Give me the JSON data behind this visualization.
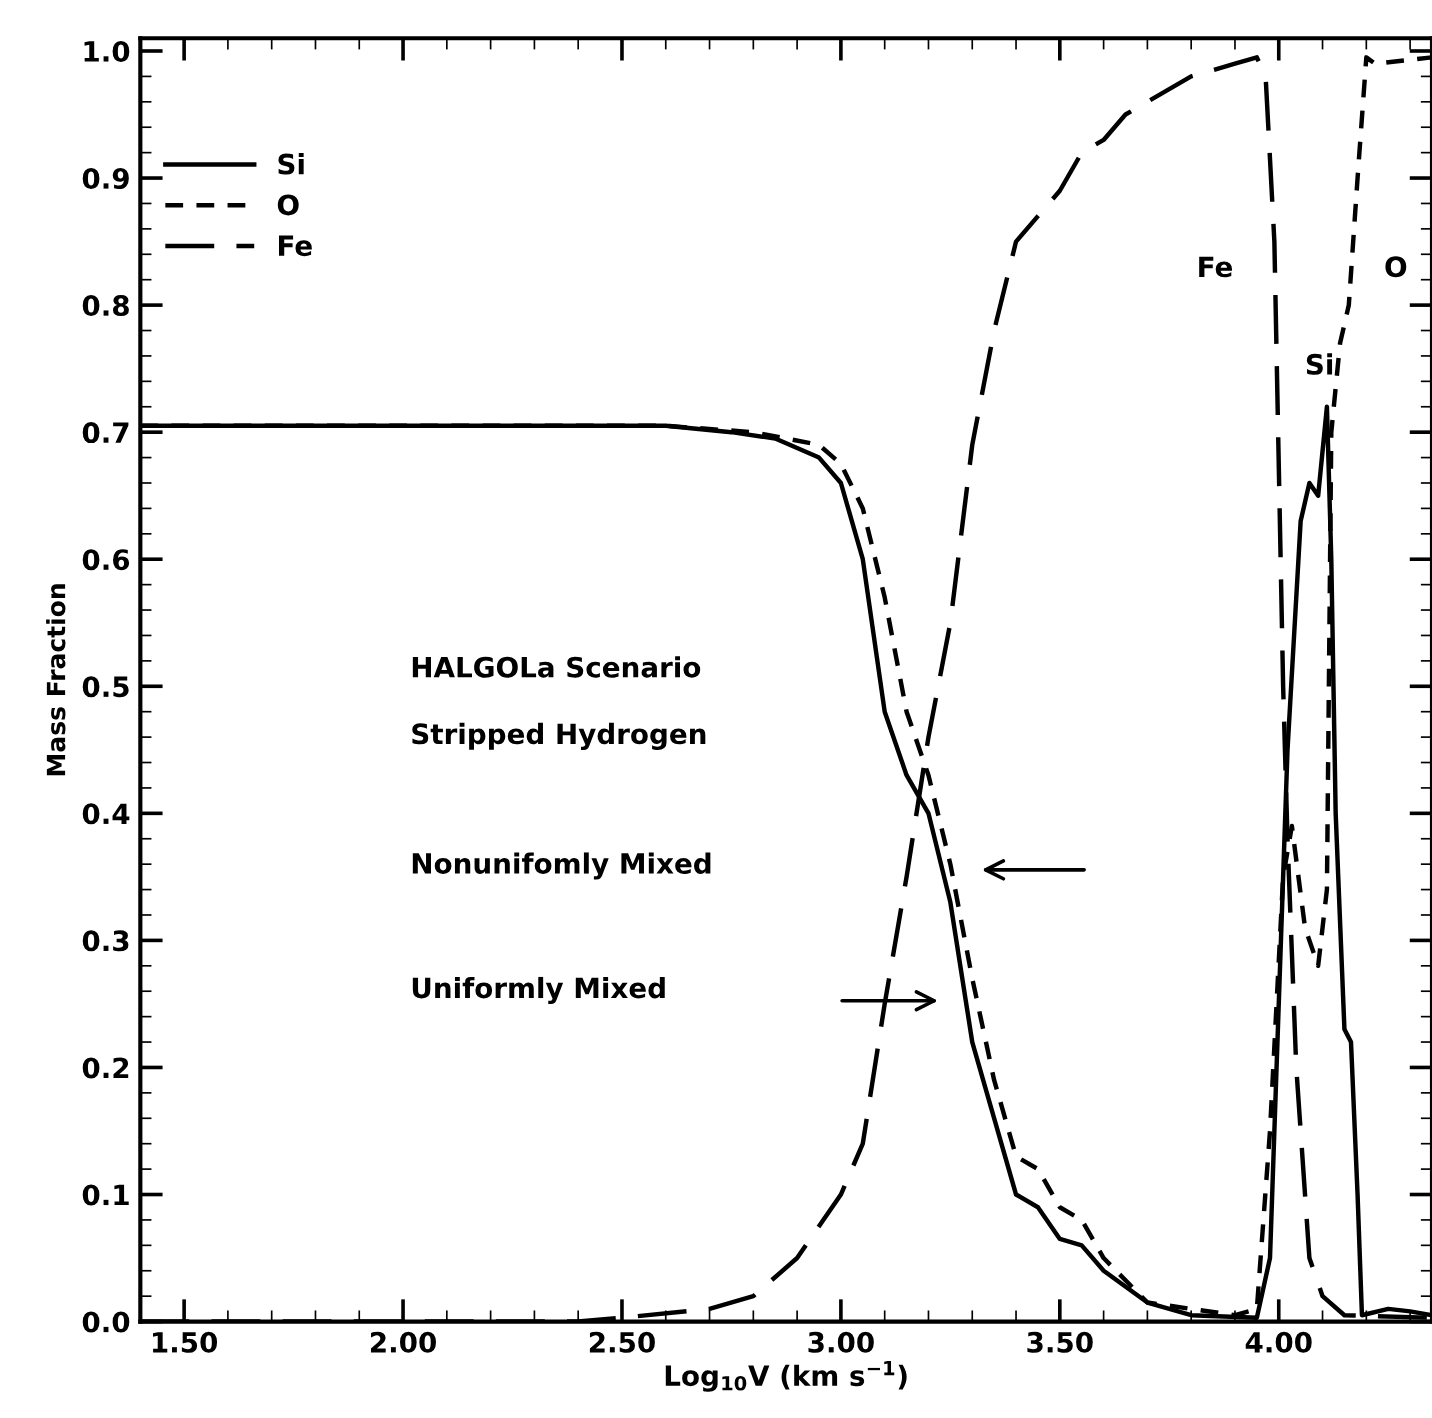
{
  "chart_data": {
    "type": "line",
    "xlabel": "Log$_{10}$V (km s$^{−1}$)",
    "ylabel": "Mass Fraction",
    "xlim": [
      1.4,
      4.35
    ],
    "ylim": [
      0.0,
      1.01
    ],
    "xticks": [
      {
        "value": 1.5,
        "label": "1.50"
      },
      {
        "value": 2.0,
        "label": "2.00"
      },
      {
        "value": 2.5,
        "label": "2.50"
      },
      {
        "value": 3.0,
        "label": "3.00"
      },
      {
        "value": 3.5,
        "label": "3.50"
      },
      {
        "value": 4.0,
        "label": "4.00"
      }
    ],
    "yticks": [
      {
        "value": 0,
        "label": "0.0"
      },
      0.1,
      0.2,
      0.3,
      0.4,
      0.5,
      0.6,
      0.7,
      0.8,
      0.9,
      {
        "value": 1,
        "label": "1.0"
      }
    ],
    "legend": "top left",
    "grid": false,
    "series": [
      {
        "name": "Si",
        "color": "#000000",
        "line_style": "solid",
        "x": [
          1.4,
          2.0,
          2.6,
          2.75,
          2.85,
          2.95,
          3.0,
          3.05,
          3.1,
          3.15,
          3.2,
          3.25,
          3.3,
          3.35,
          3.4,
          3.45,
          3.5,
          3.55,
          3.6,
          3.7,
          3.8,
          3.95,
          3.98,
          4.0,
          4.02,
          4.05,
          4.07,
          4.09,
          4.11,
          4.12,
          4.13,
          4.15,
          4.165,
          4.18,
          4.19,
          4.25,
          4.3,
          4.35
        ],
        "values": [
          0.705,
          0.705,
          0.705,
          0.7,
          0.695,
          0.68,
          0.66,
          0.6,
          0.48,
          0.43,
          0.4,
          0.33,
          0.22,
          0.16,
          0.1,
          0.09,
          0.065,
          0.06,
          0.04,
          0.015,
          0.005,
          0.003,
          0.05,
          0.25,
          0.45,
          0.63,
          0.66,
          0.65,
          0.72,
          0.6,
          0.4,
          0.23,
          0.22,
          0.1,
          0.005,
          0.01,
          0.008,
          0.005
        ]
      },
      {
        "name": "O",
        "color": "#000000",
        "line_style": "dotted",
        "x": [
          1.4,
          2.0,
          2.6,
          2.8,
          2.95,
          3.0,
          3.05,
          3.1,
          3.15,
          3.2,
          3.25,
          3.3,
          3.35,
          3.4,
          3.45,
          3.5,
          3.55,
          3.6,
          3.7,
          3.9,
          3.95,
          3.98,
          4.01,
          4.03,
          4.06,
          4.09,
          4.11,
          4.12,
          4.14,
          4.16,
          4.18,
          4.2,
          4.22,
          4.35
        ],
        "values": [
          0.705,
          0.705,
          0.705,
          0.7,
          0.69,
          0.675,
          0.64,
          0.57,
          0.48,
          0.43,
          0.36,
          0.27,
          0.19,
          0.13,
          0.12,
          0.09,
          0.08,
          0.05,
          0.015,
          0.005,
          0.01,
          0.15,
          0.35,
          0.39,
          0.31,
          0.28,
          0.34,
          0.7,
          0.77,
          0.8,
          0.9,
          0.995,
          0.99,
          0.995
        ]
      },
      {
        "name": "Fe",
        "color": "#000000",
        "line_style": "dashed",
        "x": [
          1.4,
          2.4,
          2.5,
          2.7,
          2.8,
          2.9,
          3.0,
          3.05,
          3.1,
          3.15,
          3.2,
          3.25,
          3.3,
          3.35,
          3.4,
          3.45,
          3.5,
          3.55,
          3.6,
          3.65,
          3.7,
          3.8,
          3.9,
          3.95,
          3.97,
          3.99,
          4.01,
          4.02,
          4.04,
          4.07,
          4.1,
          4.15,
          4.35
        ],
        "values": [
          0.0,
          0.0,
          0.003,
          0.01,
          0.02,
          0.05,
          0.1,
          0.14,
          0.25,
          0.35,
          0.46,
          0.55,
          0.69,
          0.78,
          0.85,
          0.87,
          0.89,
          0.92,
          0.93,
          0.95,
          0.96,
          0.98,
          0.99,
          0.995,
          0.98,
          0.85,
          0.5,
          0.38,
          0.2,
          0.05,
          0.02,
          0.005,
          0.003
        ]
      }
    ],
    "annotations": [
      "Fe",
      "Si",
      "O",
      "HALGOLa Scenario",
      "Stripped Hydrogen",
      "Nonunifomly Mixed",
      "Uniformly Mixed"
    ]
  }
}
